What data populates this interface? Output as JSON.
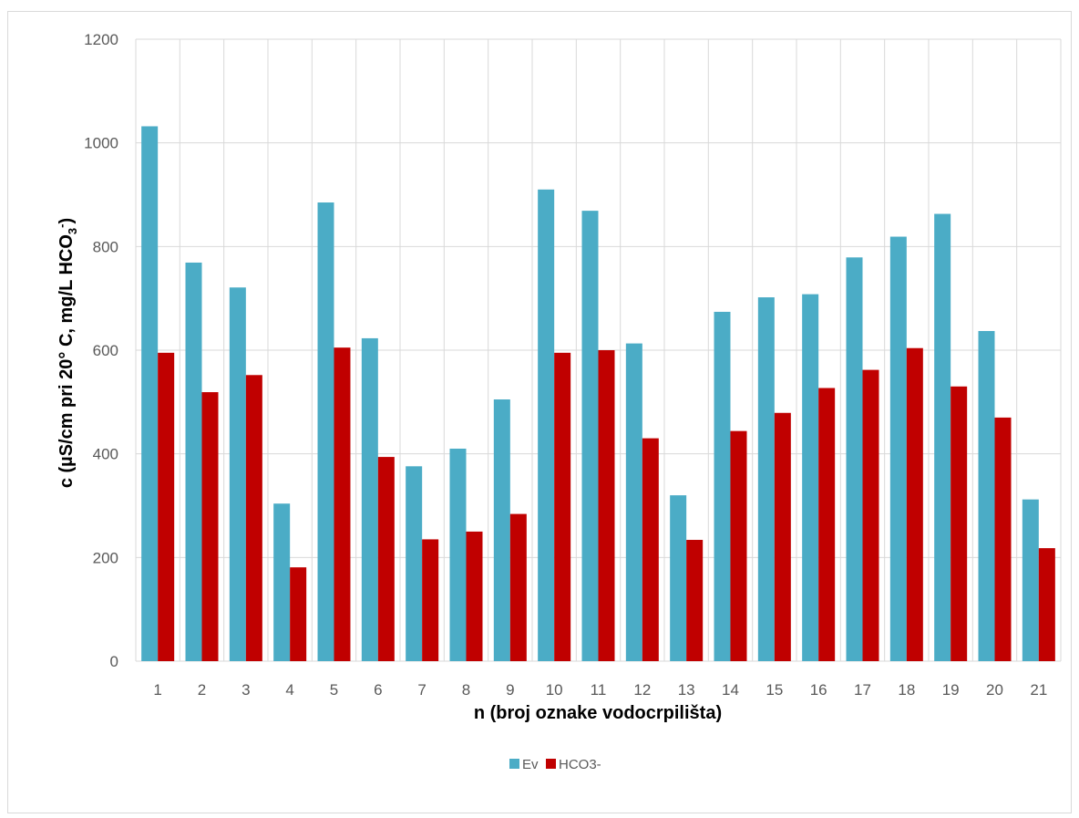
{
  "chart_data": {
    "type": "bar",
    "title": "",
    "xlabel": "n (broj oznake vodocrpilišta)",
    "ylabel": {
      "main": "c (µS/cm pri 20° C,  mg/L HCO",
      "sub": "3",
      "sup": "-",
      "end": ")"
    },
    "ylim": [
      0,
      1200
    ],
    "yticks": [
      0,
      200,
      400,
      600,
      800,
      1000,
      1200
    ],
    "grid": true,
    "legend_position": "bottom",
    "categories": [
      "1",
      "2",
      "3",
      "4",
      "5",
      "6",
      "7",
      "8",
      "9",
      "10",
      "11",
      "12",
      "13",
      "14",
      "15",
      "16",
      "17",
      "18",
      "19",
      "20",
      "21"
    ],
    "series": [
      {
        "name": "Ev",
        "color": "#4bacc6",
        "values": [
          1032,
          769,
          721,
          304,
          885,
          623,
          376,
          410,
          505,
          910,
          869,
          613,
          320,
          674,
          702,
          708,
          779,
          819,
          863,
          637,
          312
        ]
      },
      {
        "name": "HCO3-",
        "color": "#c00000",
        "values": [
          595,
          519,
          552,
          181,
          605,
          394,
          235,
          250,
          284,
          595,
          600,
          430,
          234,
          444,
          479,
          527,
          562,
          604,
          530,
          470,
          218
        ]
      }
    ]
  }
}
